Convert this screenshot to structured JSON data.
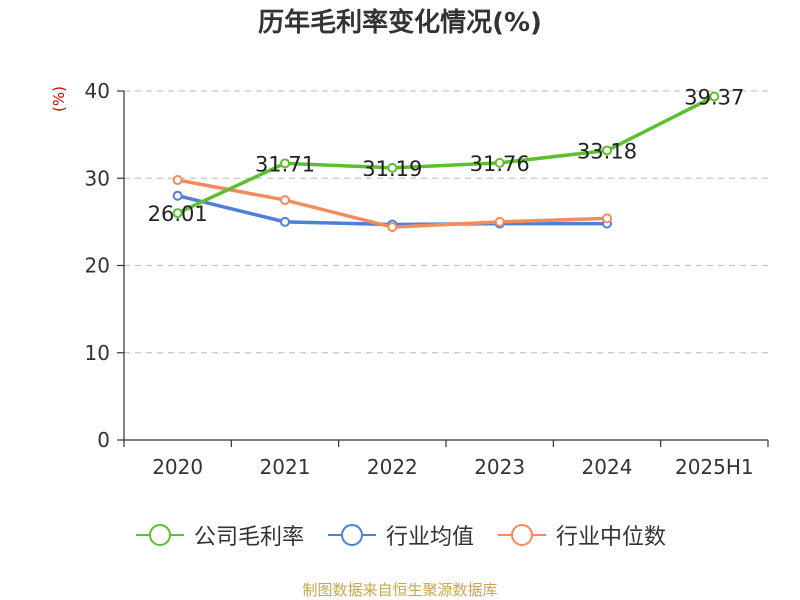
{
  "chart_data": {
    "type": "line",
    "title": "历年毛利率变化情况(%)",
    "ylabel": "(%)",
    "xlabel": "",
    "categories": [
      "2020",
      "2021",
      "2022",
      "2023",
      "2024",
      "2025H1"
    ],
    "ylim": [
      0,
      40
    ],
    "yticks": [
      0,
      10,
      20,
      30,
      40
    ],
    "grid": true,
    "grid_style": "dashed",
    "legend_position": "bottom",
    "series": [
      {
        "name": "公司毛利率",
        "color": "#5dbf2f",
        "values": [
          26.01,
          31.71,
          31.19,
          31.76,
          33.18,
          39.37
        ],
        "labels": [
          "26.01",
          "31.71",
          "31.19",
          "31.76",
          "33.18",
          "39.37"
        ],
        "show_labels": true
      },
      {
        "name": "行业均值",
        "color": "#4f7fd9",
        "values": [
          28.0,
          25.0,
          24.7,
          24.8,
          24.8,
          null
        ],
        "show_labels": false
      },
      {
        "name": "行业中位数",
        "color": "#f28c5b",
        "values": [
          29.8,
          27.5,
          24.4,
          25.0,
          25.4,
          null
        ],
        "show_labels": false
      }
    ],
    "source": "制图数据来自恒生聚源数据库"
  }
}
